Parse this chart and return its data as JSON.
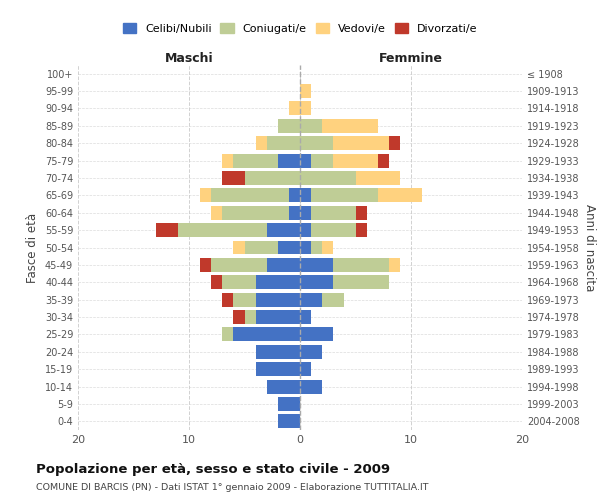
{
  "age_groups": [
    "0-4",
    "5-9",
    "10-14",
    "15-19",
    "20-24",
    "25-29",
    "30-34",
    "35-39",
    "40-44",
    "45-49",
    "50-54",
    "55-59",
    "60-64",
    "65-69",
    "70-74",
    "75-79",
    "80-84",
    "85-89",
    "90-94",
    "95-99",
    "100+"
  ],
  "birth_years": [
    "2004-2008",
    "1999-2003",
    "1994-1998",
    "1989-1993",
    "1984-1988",
    "1979-1983",
    "1974-1978",
    "1969-1973",
    "1964-1968",
    "1959-1963",
    "1954-1958",
    "1949-1953",
    "1944-1948",
    "1939-1943",
    "1934-1938",
    "1929-1933",
    "1924-1928",
    "1919-1923",
    "1914-1918",
    "1909-1913",
    "≤ 1908"
  ],
  "maschi": {
    "celibi": [
      2,
      2,
      3,
      4,
      4,
      6,
      4,
      4,
      4,
      3,
      2,
      3,
      1,
      1,
      0,
      2,
      0,
      0,
      0,
      0,
      0
    ],
    "coniugati": [
      0,
      0,
      0,
      0,
      0,
      1,
      1,
      2,
      3,
      5,
      3,
      8,
      6,
      7,
      5,
      4,
      3,
      2,
      0,
      0,
      0
    ],
    "vedovi": [
      0,
      0,
      0,
      0,
      0,
      0,
      0,
      0,
      0,
      0,
      1,
      0,
      1,
      1,
      0,
      1,
      1,
      0,
      1,
      0,
      0
    ],
    "divorziati": [
      0,
      0,
      0,
      0,
      0,
      0,
      1,
      1,
      1,
      1,
      0,
      2,
      0,
      0,
      2,
      0,
      0,
      0,
      0,
      0,
      0
    ]
  },
  "femmine": {
    "nubili": [
      0,
      0,
      2,
      1,
      2,
      3,
      1,
      2,
      3,
      3,
      1,
      1,
      1,
      1,
      0,
      1,
      0,
      0,
      0,
      0,
      0
    ],
    "coniugate": [
      0,
      0,
      0,
      0,
      0,
      0,
      0,
      2,
      5,
      5,
      1,
      4,
      4,
      6,
      5,
      2,
      3,
      2,
      0,
      0,
      0
    ],
    "vedove": [
      0,
      0,
      0,
      0,
      0,
      0,
      0,
      0,
      0,
      1,
      1,
      0,
      0,
      4,
      4,
      4,
      5,
      5,
      1,
      1,
      0
    ],
    "divorziate": [
      0,
      0,
      0,
      0,
      0,
      0,
      0,
      0,
      0,
      0,
      0,
      1,
      1,
      0,
      0,
      1,
      1,
      0,
      0,
      0,
      0
    ]
  },
  "colors": {
    "celibi_nubili": "#4472C4",
    "coniugati": "#BFCD96",
    "vedovi": "#FFD27F",
    "divorziati": "#C0392B"
  },
  "title": "Popolazione per età, sesso e stato civile - 2009",
  "subtitle": "COMUNE DI BARCIS (PN) - Dati ISTAT 1° gennaio 2009 - Elaborazione TUTTITALIA.IT",
  "xlabel_left": "Maschi",
  "xlabel_right": "Femmine",
  "ylabel_left": "Fasce di età",
  "ylabel_right": "Anni di nascita",
  "xlim": 20,
  "background_color": "#ffffff",
  "grid_color": "#cccccc"
}
